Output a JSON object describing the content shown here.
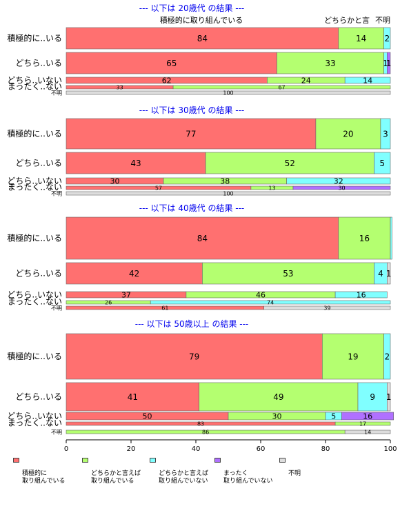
{
  "chart_data": {
    "type": "bar",
    "orientation": "horizontal",
    "stacked": "percent",
    "xlim": [
      0,
      100
    ],
    "xticks": [
      "0",
      "20",
      "40",
      "60",
      "80",
      "100"
    ],
    "grid": false,
    "legend_position": "bottom",
    "legend": [
      {
        "label": "積極的に\n取り組んでいる",
        "color": "#ff7070"
      },
      {
        "label": "どちらかと言えば\n取り組んでいる",
        "color": "#b4ff70"
      },
      {
        "label": "どちらかと言えば\n取り組んでいない",
        "color": "#80ffff"
      },
      {
        "label": "まったく\n取り組んでいない",
        "color": "#b070ff"
      },
      {
        "label": "不明",
        "color": "#dddddd"
      }
    ],
    "top_annotations": [
      {
        "text": "積極的に取り組んでいる",
        "x": 50
      },
      {
        "text": "どちらかと言",
        "x": 98
      },
      {
        "text": "不明",
        "x": 100
      }
    ],
    "panels": [
      {
        "title": "--- 以下は 20歳代 の結果 ---",
        "rows": [
          {
            "label": "積極的に..いる",
            "values": [
              84,
              14,
              2,
              0,
              0
            ],
            "value_labels": [
              "84",
              "14",
              "2",
              "",
              ""
            ]
          },
          {
            "label": "どちら..いる",
            "values": [
              65,
              33,
              1,
              1,
              0
            ],
            "value_labels": [
              "65",
              "33",
              "1",
              "1",
              ""
            ]
          },
          {
            "label": "どちら..いない",
            "values": [
              62,
              24,
              14,
              0,
              0
            ],
            "value_labels": [
              "62",
              "24",
              "14",
              "",
              ""
            ]
          },
          {
            "label": "まったく..ない",
            "values": [
              33,
              67,
              0,
              0,
              0
            ],
            "value_labels": [
              "33",
              "67",
              "",
              "",
              ""
            ]
          },
          {
            "label": "不明",
            "values": [
              0,
              0,
              0,
              0,
              100
            ],
            "value_labels": [
              "",
              "",
              "",
              "",
              "100"
            ]
          }
        ]
      },
      {
        "title": "--- 以下は 30歳代 の結果 ---",
        "rows": [
          {
            "label": "積極的に..いる",
            "values": [
              77,
              20,
              3,
              0,
              0
            ],
            "value_labels": [
              "77",
              "20",
              "3",
              "",
              ""
            ]
          },
          {
            "label": "どちら..いる",
            "values": [
              43,
              52,
              5,
              0,
              0
            ],
            "value_labels": [
              "43",
              "52",
              "5",
              "",
              ""
            ]
          },
          {
            "label": "どちら..いない",
            "values": [
              30,
              38,
              32,
              0,
              0
            ],
            "value_labels": [
              "30",
              "38",
              "32",
              "",
              ""
            ]
          },
          {
            "label": "まったく..ない",
            "values": [
              57,
              13,
              0,
              30,
              0
            ],
            "value_labels": [
              "57",
              "13",
              "",
              "30",
              ""
            ]
          },
          {
            "label": "不明",
            "values": [
              0,
              0,
              0,
              0,
              100
            ],
            "value_labels": [
              "",
              "",
              "",
              "",
              "100"
            ]
          }
        ]
      },
      {
        "title": "--- 以下は 40歳代 の結果 ---",
        "rows": [
          {
            "label": "積極的に..いる",
            "values": [
              84,
              16,
              0.5,
              0,
              0
            ],
            "value_labels": [
              "84",
              "16",
              "",
              "",
              ""
            ]
          },
          {
            "label": "どちら..いる",
            "values": [
              42,
              53,
              4,
              0,
              1
            ],
            "value_labels": [
              "42",
              "53",
              "4",
              "",
              "1"
            ]
          },
          {
            "label": "どちら..いない",
            "values": [
              37,
              46,
              16,
              0,
              0
            ],
            "value_labels": [
              "37",
              "46",
              "16",
              "",
              ""
            ]
          },
          {
            "label": "まったく..ない",
            "values": [
              0,
              26,
              74,
              0,
              0
            ],
            "value_labels": [
              "",
              "26",
              "74",
              "",
              ""
            ]
          },
          {
            "label": "不明",
            "values": [
              61,
              0,
              0,
              0,
              39
            ],
            "value_labels": [
              "61",
              "",
              "",
              "",
              "39"
            ]
          }
        ]
      },
      {
        "title": "--- 以下は 50歳以上 の結果 ---",
        "rows": [
          {
            "label": "積極的に..いる",
            "values": [
              79,
              19,
              2,
              0,
              0
            ],
            "value_labels": [
              "79",
              "19",
              "2",
              "",
              ""
            ]
          },
          {
            "label": "どちら..いる",
            "values": [
              41,
              49,
              9,
              0,
              1
            ],
            "value_labels": [
              "41",
              "49",
              "9",
              "",
              "1"
            ]
          },
          {
            "label": "どちら..いない",
            "values": [
              50,
              30,
              5,
              16,
              0
            ],
            "value_labels": [
              "50",
              "30",
              "5",
              "16",
              ""
            ]
          },
          {
            "label": "まったく..ない",
            "values": [
              83,
              17,
              0,
              0,
              0
            ],
            "value_labels": [
              "83",
              "17",
              "",
              "",
              ""
            ]
          },
          {
            "label": "不明",
            "values": [
              0,
              86,
              0,
              0,
              14
            ],
            "value_labels": [
              "",
              "86",
              "",
              "",
              "14"
            ]
          }
        ]
      }
    ]
  }
}
